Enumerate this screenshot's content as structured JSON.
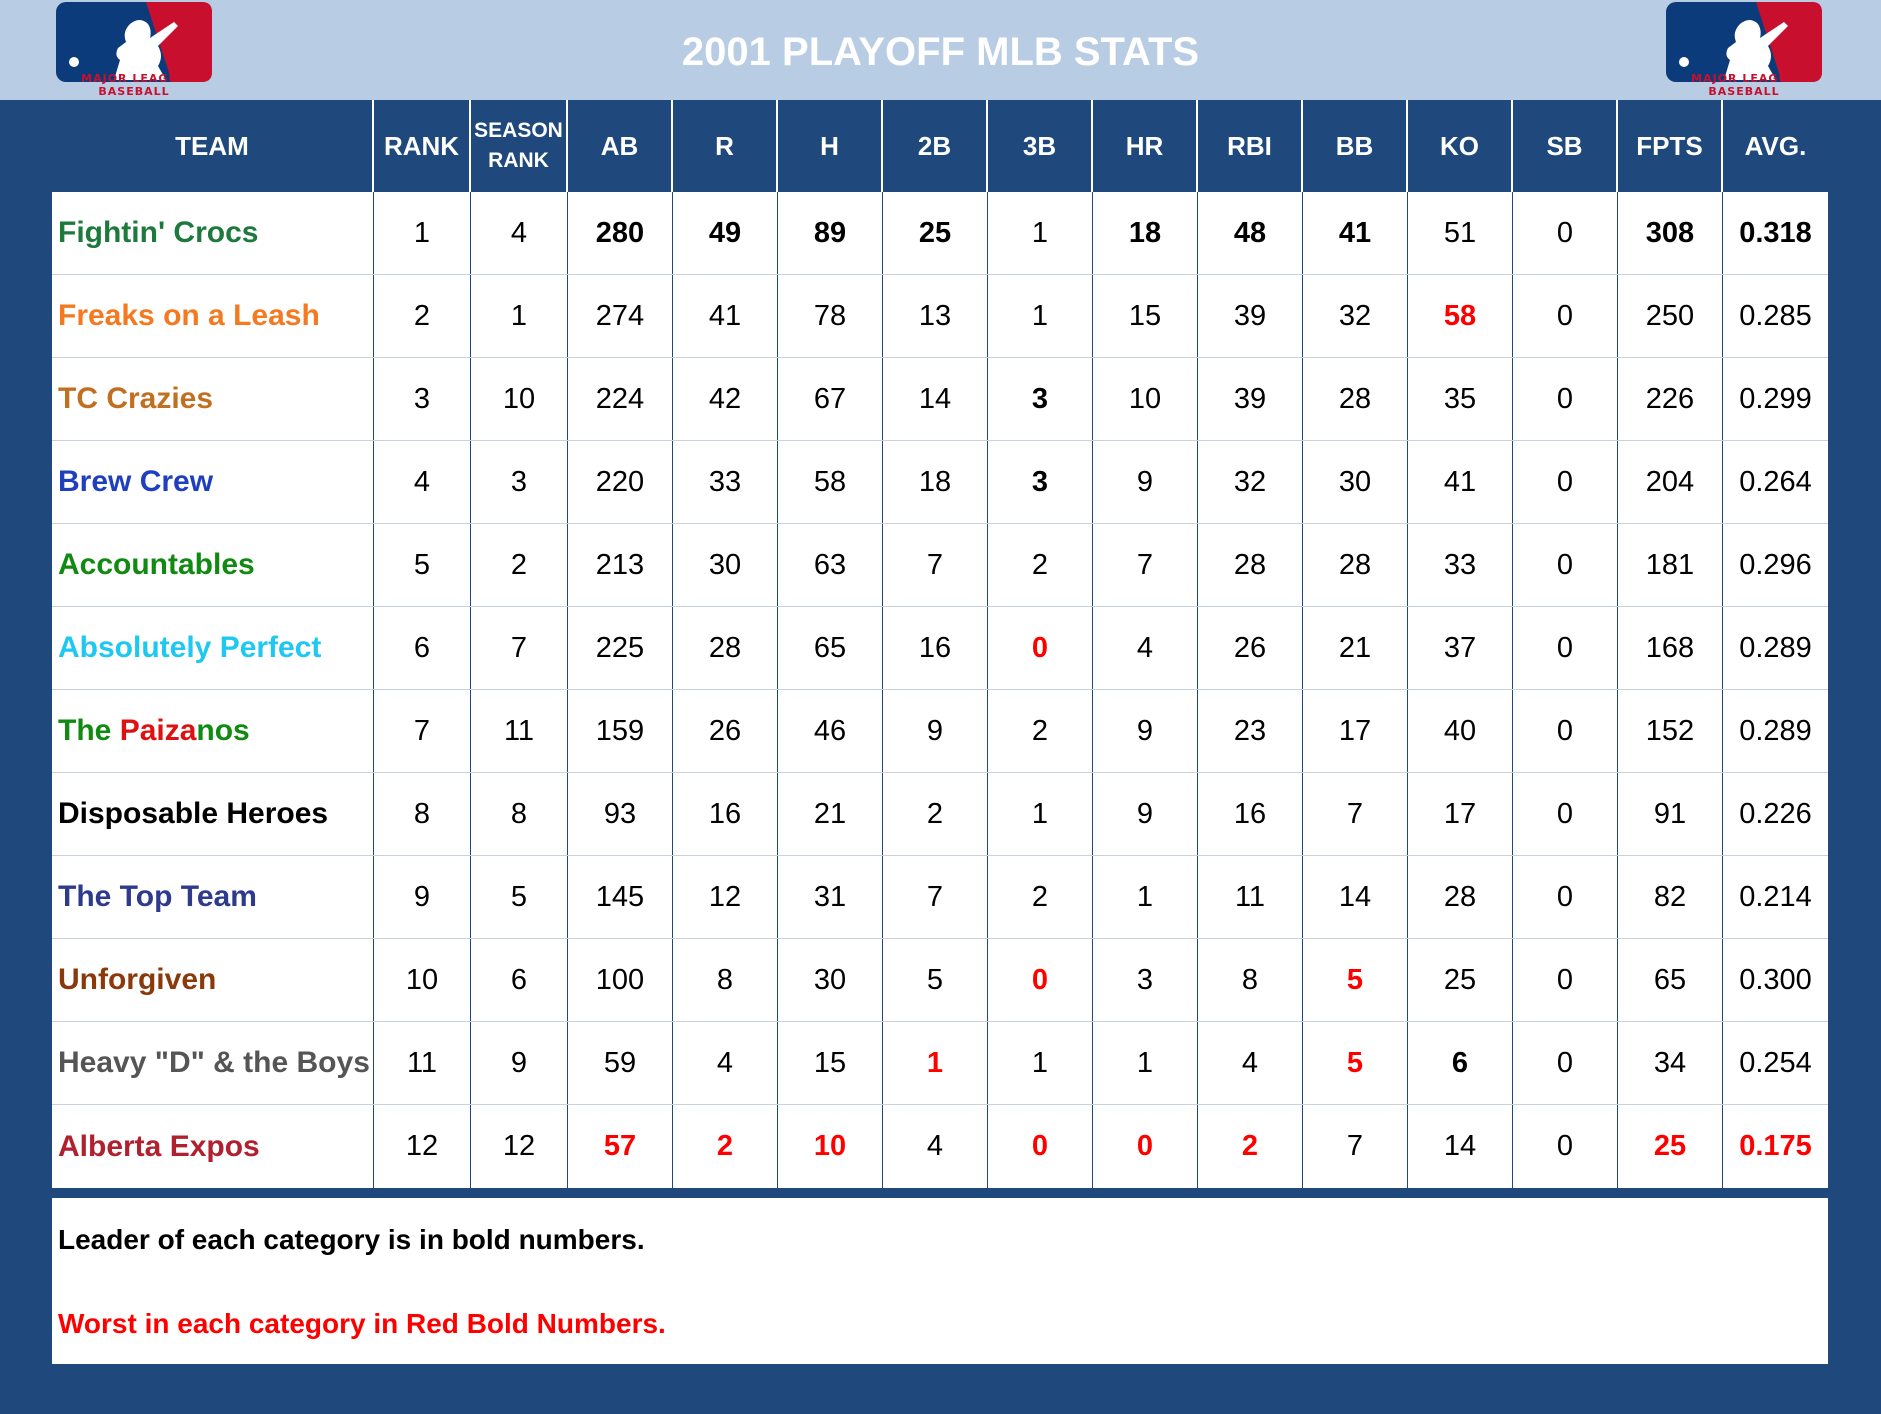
{
  "header": {
    "title": "2001 PLAYOFF MLB STATS",
    "logo_text": "MAJOR LEAGUE BASEBALL",
    "logo_icon": "mlb-batter-logo-icon"
  },
  "columns": [
    "TEAM",
    "RANK",
    "SEASON RANK",
    "AB",
    "R",
    "H",
    "2B",
    "3B",
    "HR",
    "RBI",
    "BB",
    "KO",
    "SB",
    "FPTS",
    "AVG."
  ],
  "colors": {
    "header_bg": "#b8cce4",
    "frame_bg": "#1f497d",
    "worst": "#ff0000",
    "logo_blue": "#0b3b7a",
    "logo_red": "#c8102e"
  },
  "rows": [
    {
      "team": "Fightin' Crocs",
      "team_color": "#1e7a3c",
      "values": [
        "1",
        "4",
        "280",
        "49",
        "89",
        "25",
        "1",
        "18",
        "48",
        "41",
        "51",
        "0",
        "308",
        "0.318"
      ],
      "bold": [
        2,
        3,
        4,
        5,
        7,
        8,
        9,
        12,
        13
      ],
      "worst": []
    },
    {
      "team": "Freaks on a Leash",
      "team_color": "#f47920",
      "values": [
        "2",
        "1",
        "274",
        "41",
        "78",
        "13",
        "1",
        "15",
        "39",
        "32",
        "58",
        "0",
        "250",
        "0.285"
      ],
      "bold": [],
      "worst": [
        10
      ]
    },
    {
      "team": "TC Crazies",
      "team_color": "#c07020",
      "values": [
        "3",
        "10",
        "224",
        "42",
        "67",
        "14",
        "3",
        "10",
        "39",
        "28",
        "35",
        "0",
        "226",
        "0.299"
      ],
      "bold": [
        6
      ],
      "worst": []
    },
    {
      "team": "Brew Crew",
      "team_color": "#1f3fbf",
      "values": [
        "4",
        "3",
        "220",
        "33",
        "58",
        "18",
        "3",
        "9",
        "32",
        "30",
        "41",
        "0",
        "204",
        "0.264"
      ],
      "bold": [
        6
      ],
      "worst": []
    },
    {
      "team": "Accountables",
      "team_color": "#118a11",
      "values": [
        "5",
        "2",
        "213",
        "30",
        "63",
        "7",
        "2",
        "7",
        "28",
        "28",
        "33",
        "0",
        "181",
        "0.296"
      ],
      "bold": [],
      "worst": []
    },
    {
      "team": "Absolutely Perfect",
      "team_color": "#1ec8f0",
      "values": [
        "6",
        "7",
        "225",
        "28",
        "65",
        "16",
        "0",
        "4",
        "26",
        "21",
        "37",
        "0",
        "168",
        "0.289"
      ],
      "bold": [],
      "worst": [
        6
      ]
    },
    {
      "team": "The Paizanos",
      "team_color": "#118a11",
      "team_parts": [
        [
          "Th",
          "#118a11"
        ],
        [
          "e ",
          "#118a11"
        ],
        [
          "Paiza",
          "#e01010"
        ],
        [
          "nos",
          "#118a11"
        ]
      ],
      "values": [
        "7",
        "11",
        "159",
        "26",
        "46",
        "9",
        "2",
        "9",
        "23",
        "17",
        "40",
        "0",
        "152",
        "0.289"
      ],
      "bold": [],
      "worst": []
    },
    {
      "team": "Disposable Heroes",
      "team_color": "#000000",
      "values": [
        "8",
        "8",
        "93",
        "16",
        "21",
        "2",
        "1",
        "9",
        "16",
        "7",
        "17",
        "0",
        "91",
        "0.226"
      ],
      "bold": [],
      "worst": []
    },
    {
      "team": "The Top Team",
      "team_color": "#2e3a8c",
      "values": [
        "9",
        "5",
        "145",
        "12",
        "31",
        "7",
        "2",
        "1",
        "11",
        "14",
        "28",
        "0",
        "82",
        "0.214"
      ],
      "bold": [],
      "worst": []
    },
    {
      "team": "Unforgiven",
      "team_color": "#8a3a0a",
      "values": [
        "10",
        "6",
        "100",
        "8",
        "30",
        "5",
        "0",
        "3",
        "8",
        "5",
        "25",
        "0",
        "65",
        "0.300"
      ],
      "bold": [],
      "worst": [
        6,
        9
      ]
    },
    {
      "team": "Heavy \"D\" & the Boys",
      "team_color": "#555555",
      "values": [
        "11",
        "9",
        "59",
        "4",
        "15",
        "1",
        "1",
        "1",
        "4",
        "5",
        "6",
        "0",
        "34",
        "0.254"
      ],
      "bold": [
        10
      ],
      "worst": [
        5,
        9
      ]
    },
    {
      "team": "Alberta Expos",
      "team_color": "#b0202e",
      "values": [
        "12",
        "12",
        "57",
        "2",
        "10",
        "4",
        "0",
        "0",
        "2",
        "7",
        "14",
        "0",
        "25",
        "0.175"
      ],
      "bold": [],
      "worst": [
        2,
        3,
        4,
        6,
        7,
        8,
        12,
        13
      ]
    }
  ],
  "notes": {
    "leader": "Leader of each category is in bold numbers.",
    "worst": "Worst in each category in Red Bold Numbers."
  }
}
